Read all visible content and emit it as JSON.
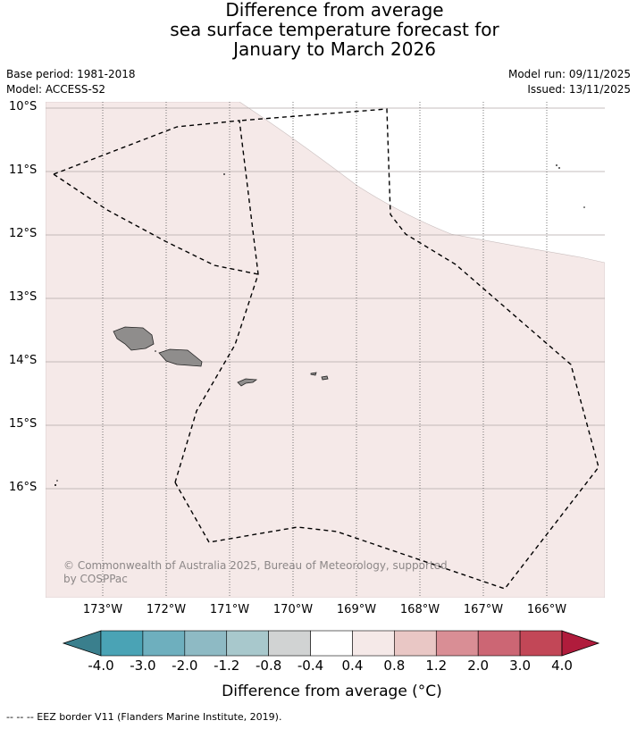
{
  "title": {
    "line1": "Difference from average",
    "line2": "sea surface temperature forecast for",
    "line3": "January to March 2026"
  },
  "meta": {
    "base_period": "Base period: 1981-2018",
    "model": "Model: ACCESS-S2",
    "model_run": "Model run: 09/11/2025",
    "issued": "Issued: 13/11/2025"
  },
  "map": {
    "lat_labels": [
      "10°S",
      "11°S",
      "12°S",
      "13°S",
      "14°S",
      "15°S",
      "16°S"
    ],
    "lon_labels": [
      "173°W",
      "172°W",
      "171°W",
      "170°W",
      "169°W",
      "168°W",
      "167°W",
      "166°W"
    ],
    "sst_fill_color": "#f5e9e8",
    "land_color": "#8f8d8c",
    "eez_line_color": "#000000",
    "grid_style": "lat solid, lon dotted",
    "copyright_line1": "© Commonwealth of Australia 2025, Bureau of Meteorology, supported",
    "copyright_line2": "by COSPPac"
  },
  "colorbar": {
    "labels": [
      "-4.0",
      "-3.0",
      "-2.0",
      "-1.2",
      "-0.8",
      "-0.4",
      "0.4",
      "0.8",
      "1.2",
      "2.0",
      "3.0",
      "4.0"
    ],
    "colors": [
      "#4aa3b5",
      "#6eafbe",
      "#8ebac4",
      "#a8c8cc",
      "#d1d3d3",
      "#ffffff",
      "#f5e9e8",
      "#e9c7c5",
      "#d98e95",
      "#cc6674",
      "#c24757"
    ],
    "low_extension_color": "#3a7f8d",
    "high_extension_color": "#b01c3c",
    "title": "Difference from average (°C)"
  },
  "footer": {
    "legend": "--  --  -- EEZ border V11 (Flanders Marine Institute, 2019)."
  }
}
